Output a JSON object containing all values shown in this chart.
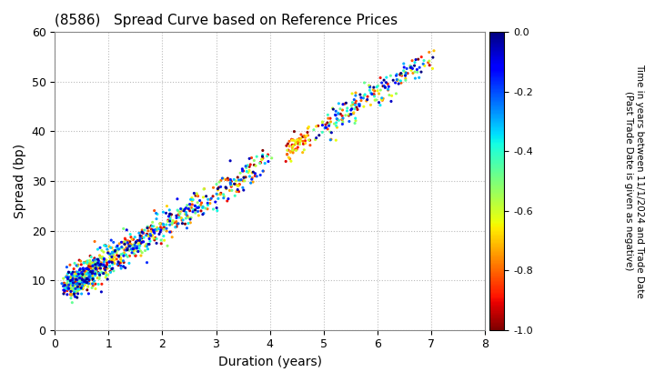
{
  "title": "(8586)   Spread Curve based on Reference Prices",
  "xlabel": "Duration (years)",
  "ylabel": "Spread (bp)",
  "xlim": [
    0,
    8
  ],
  "ylim": [
    0,
    60
  ],
  "xticks": [
    0,
    1,
    2,
    3,
    4,
    5,
    6,
    7,
    8
  ],
  "yticks": [
    0,
    10,
    20,
    30,
    40,
    50,
    60
  ],
  "colorbar_label_line1": "Time in years between 11/1/2024 and Trade Date",
  "colorbar_label_line2": "(Past Trade Date is given as negative)",
  "cmap": "jet_r",
  "clim": [
    -1.0,
    0.0
  ],
  "cticks": [
    0.0,
    -0.2,
    -0.4,
    -0.6,
    -0.8,
    -1.0
  ],
  "marker_size": 5,
  "background_color": "#ffffff",
  "grid_color": "#bbbbbb",
  "seed": 42,
  "figsize": [
    7.2,
    4.2
  ],
  "dpi": 100
}
